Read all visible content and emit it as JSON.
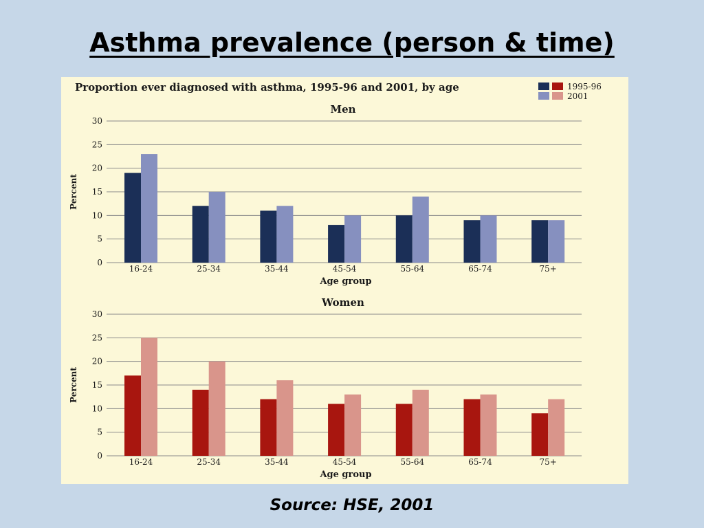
{
  "slide": {
    "title": "Asthma prevalence (person & time)",
    "source": "Source: HSE, 2001"
  },
  "colors": {
    "background": "#c6d7e8",
    "panel": "#fcf8d8",
    "men_1995": "#1b2f57",
    "men_2001": "#8690bf",
    "women_1995": "#a8160f",
    "women_2001": "#d9958b",
    "grid": "#8a8a8a"
  },
  "legend": {
    "labels": [
      "1995-96",
      "2001"
    ],
    "placement": "top-right"
  },
  "chart_data": {
    "title": "Proportion ever diagnosed with asthma, 1995-96 and 2001, by age",
    "panels": [
      {
        "type": "bar",
        "title": "Men",
        "categories": [
          "16-24",
          "25-34",
          "35-44",
          "45-54",
          "55-64",
          "65-74",
          "75+"
        ],
        "series": [
          {
            "name": "1995-96",
            "values": [
              19,
              12,
              11,
              8,
              10,
              9,
              9
            ]
          },
          {
            "name": "2001",
            "values": [
              23,
              15,
              12,
              10,
              14,
              10,
              9
            ]
          }
        ],
        "xlabel": "Age group",
        "ylabel": "Percent",
        "ylim": [
          0,
          30
        ],
        "yticks": [
          0,
          5,
          10,
          15,
          20,
          25,
          30
        ],
        "grid": true
      },
      {
        "type": "bar",
        "title": "Women",
        "categories": [
          "16-24",
          "25-34",
          "35-44",
          "45-54",
          "55-64",
          "65-74",
          "75+"
        ],
        "series": [
          {
            "name": "1995-96",
            "values": [
              17,
              14,
              12,
              11,
              11,
              12,
              9
            ]
          },
          {
            "name": "2001",
            "values": [
              25,
              20,
              16,
              13,
              14,
              13,
              12
            ]
          }
        ],
        "xlabel": "Age group",
        "ylabel": "Percent",
        "ylim": [
          0,
          30
        ],
        "yticks": [
          0,
          5,
          10,
          15,
          20,
          25,
          30
        ],
        "grid": true
      }
    ]
  }
}
